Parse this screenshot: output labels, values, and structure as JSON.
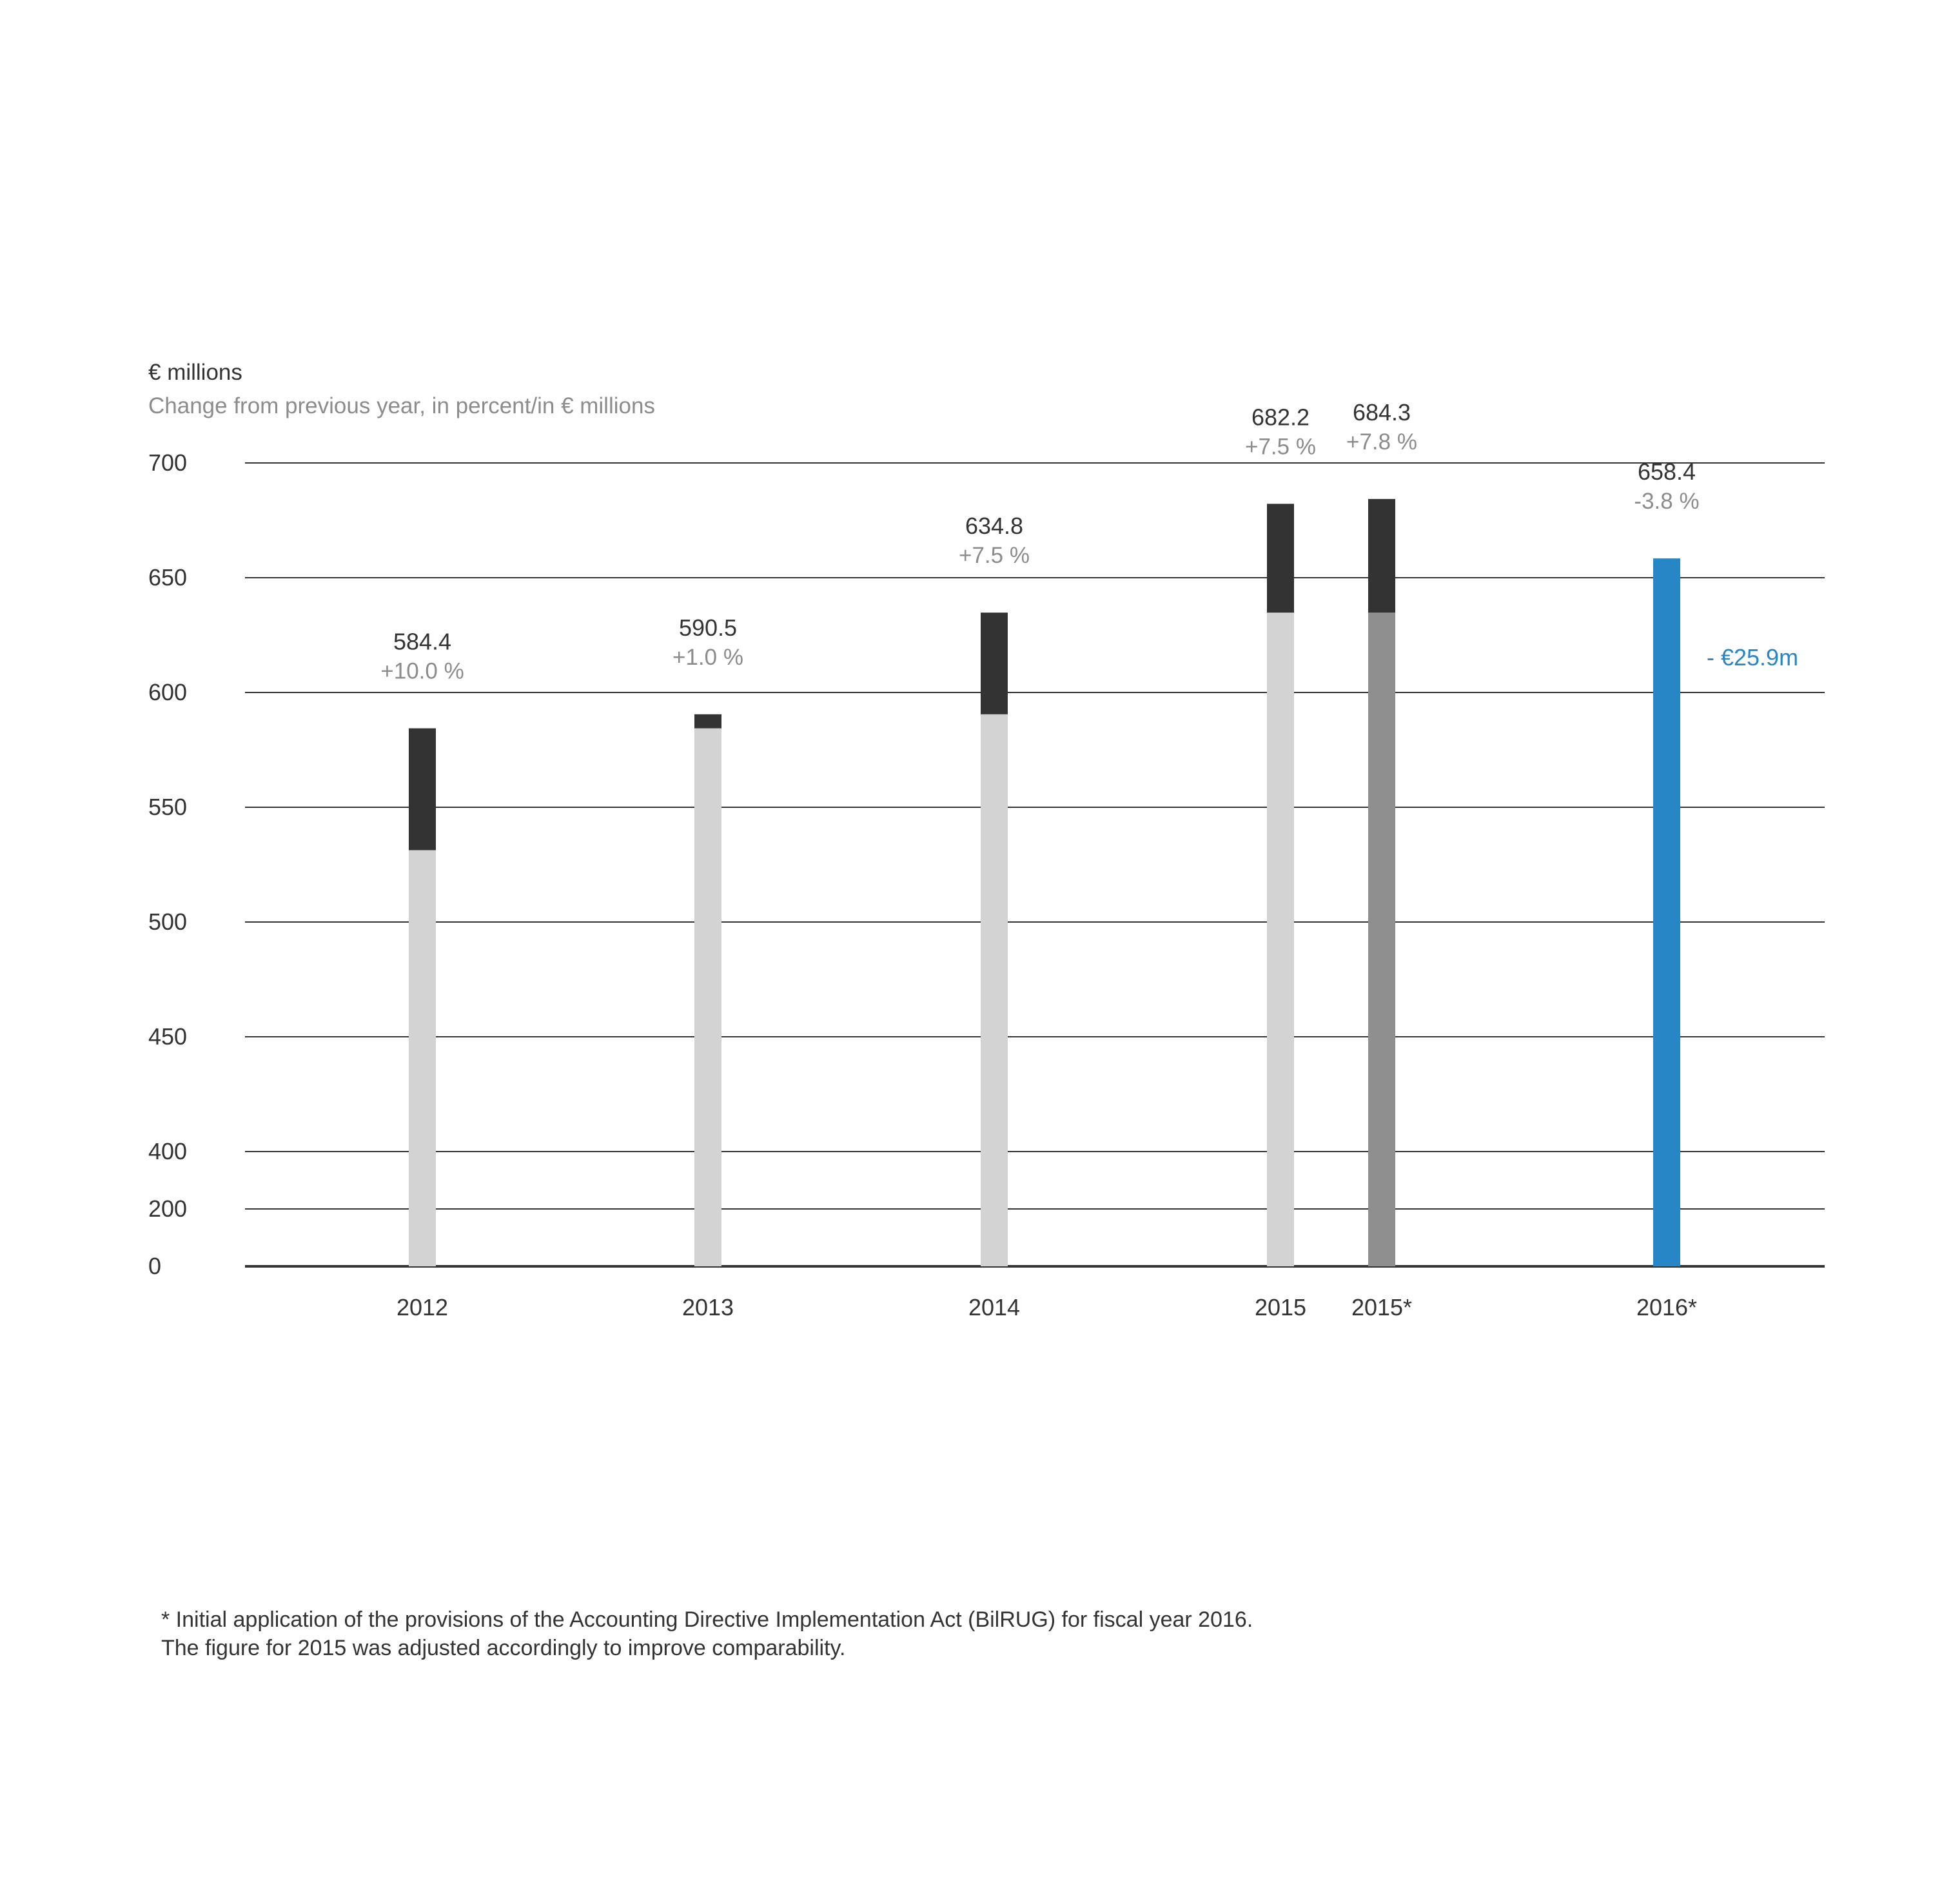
{
  "header": {
    "unit": "€ millions",
    "subtitle": "Change from previous year, in percent/in € millions"
  },
  "chart_data": {
    "type": "bar",
    "stacked": true,
    "y_axis": {
      "ticks": [
        700,
        650,
        600,
        550,
        500,
        450,
        400,
        200,
        0
      ],
      "broken_scale": true
    },
    "categories": [
      "2012",
      "2013",
      "2014",
      "2015",
      "2015*",
      "2016*"
    ],
    "bars": [
      {
        "category": "2012",
        "base": 531.3,
        "increase": 53.1,
        "total": 584.4,
        "value_label": "584.4",
        "change_label": "+10.0 %",
        "base_color": "#d3d3d3",
        "increase_color": "#333333"
      },
      {
        "category": "2013",
        "base": 584.4,
        "increase": 6.1,
        "total": 590.5,
        "value_label": "590.5",
        "change_label": "+1.0 %",
        "base_color": "#d3d3d3",
        "increase_color": "#333333"
      },
      {
        "category": "2014",
        "base": 590.5,
        "increase": 44.3,
        "total": 634.8,
        "value_label": "634.8",
        "change_label": "+7.5 %",
        "base_color": "#d3d3d3",
        "increase_color": "#333333"
      },
      {
        "category": "2015",
        "base": 634.8,
        "increase": 47.4,
        "total": 682.2,
        "value_label": "682.2",
        "change_label": "+7.5 %",
        "base_color": "#d3d3d3",
        "increase_color": "#333333"
      },
      {
        "category": "2015*",
        "base": 634.8,
        "increase": 49.5,
        "total": 684.3,
        "value_label": "684.3",
        "change_label": "+7.8 %",
        "base_color": "#8f8f8f",
        "increase_color": "#333333"
      },
      {
        "category": "2016*",
        "base": 658.4,
        "increase": 0,
        "total": 658.4,
        "value_label": "658.4",
        "change_label": "-3.8 %",
        "base_color": "#2787c6",
        "increase_color": "#2787c6"
      }
    ],
    "annotations": [
      {
        "category": "2016*",
        "text": "- €25.9m",
        "color": "#2787c6"
      }
    ],
    "colors": {
      "prior_level": "#d3d3d3",
      "increase": "#333333",
      "adjusted": "#8f8f8f",
      "current": "#2787c6",
      "grid": "#333333",
      "value_text": "#333333",
      "change_text": "#8c8c8c"
    },
    "grid": true,
    "legend": "none"
  },
  "footnote": {
    "line1": "* Initial application of the provisions of the Accounting Directive Implementation Act (BilRUG) for fiscal year 2016.",
    "line2": "The figure for 2015 was adjusted accordingly to improve comparability."
  }
}
